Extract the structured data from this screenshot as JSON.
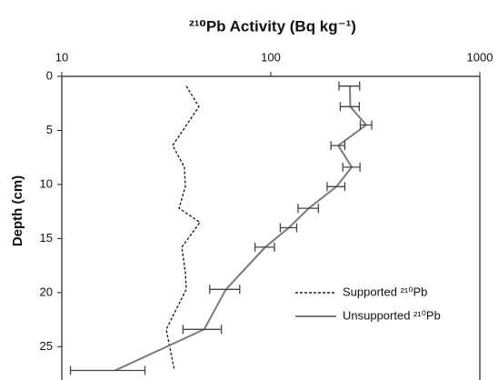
{
  "chart_data": {
    "type": "line",
    "title": "²¹⁰Pb Activity (Bq kg⁻¹)",
    "y_label": "Depth (cm)",
    "xlim": [
      10,
      1000
    ],
    "xticks": [
      10,
      100,
      1000
    ],
    "x_log": true,
    "ylim": [
      0,
      28
    ],
    "yticks": [
      0,
      5,
      10,
      15,
      20,
      25
    ],
    "y_inverted": true,
    "series": [
      {
        "name": "Supported ²¹⁰Pb",
        "color": "#222222",
        "dashed": true,
        "depth": [
          0.9,
          2.8,
          6.4,
          8.4,
          10.2,
          12.2,
          13.5,
          15.8,
          18.1,
          19.7,
          23.4,
          27.2
        ],
        "values": [
          39.4,
          45.3,
          33.9,
          38.6,
          39,
          36.4,
          45.8,
          37.5,
          39,
          39.4,
          31.6,
          34.6
        ]
      },
      {
        "name": "Unsupported ²¹⁰Pb",
        "color": "#7a7a7a",
        "dashed": false,
        "depth": [
          0.9,
          2.8,
          4.5,
          6.4,
          8.4,
          10.2,
          12.2,
          14.0,
          15.8,
          19.7,
          23.4,
          27.2
        ],
        "values": [
          239,
          240,
          286,
          210,
          244,
          206,
          152,
          122,
          94,
          61,
          48,
          18
        ],
        "errors": [
          27,
          25,
          18,
          16,
          23,
          20,
          17,
          11,
          10,
          10,
          10,
          7
        ]
      }
    ],
    "legend_position": "lower right"
  }
}
